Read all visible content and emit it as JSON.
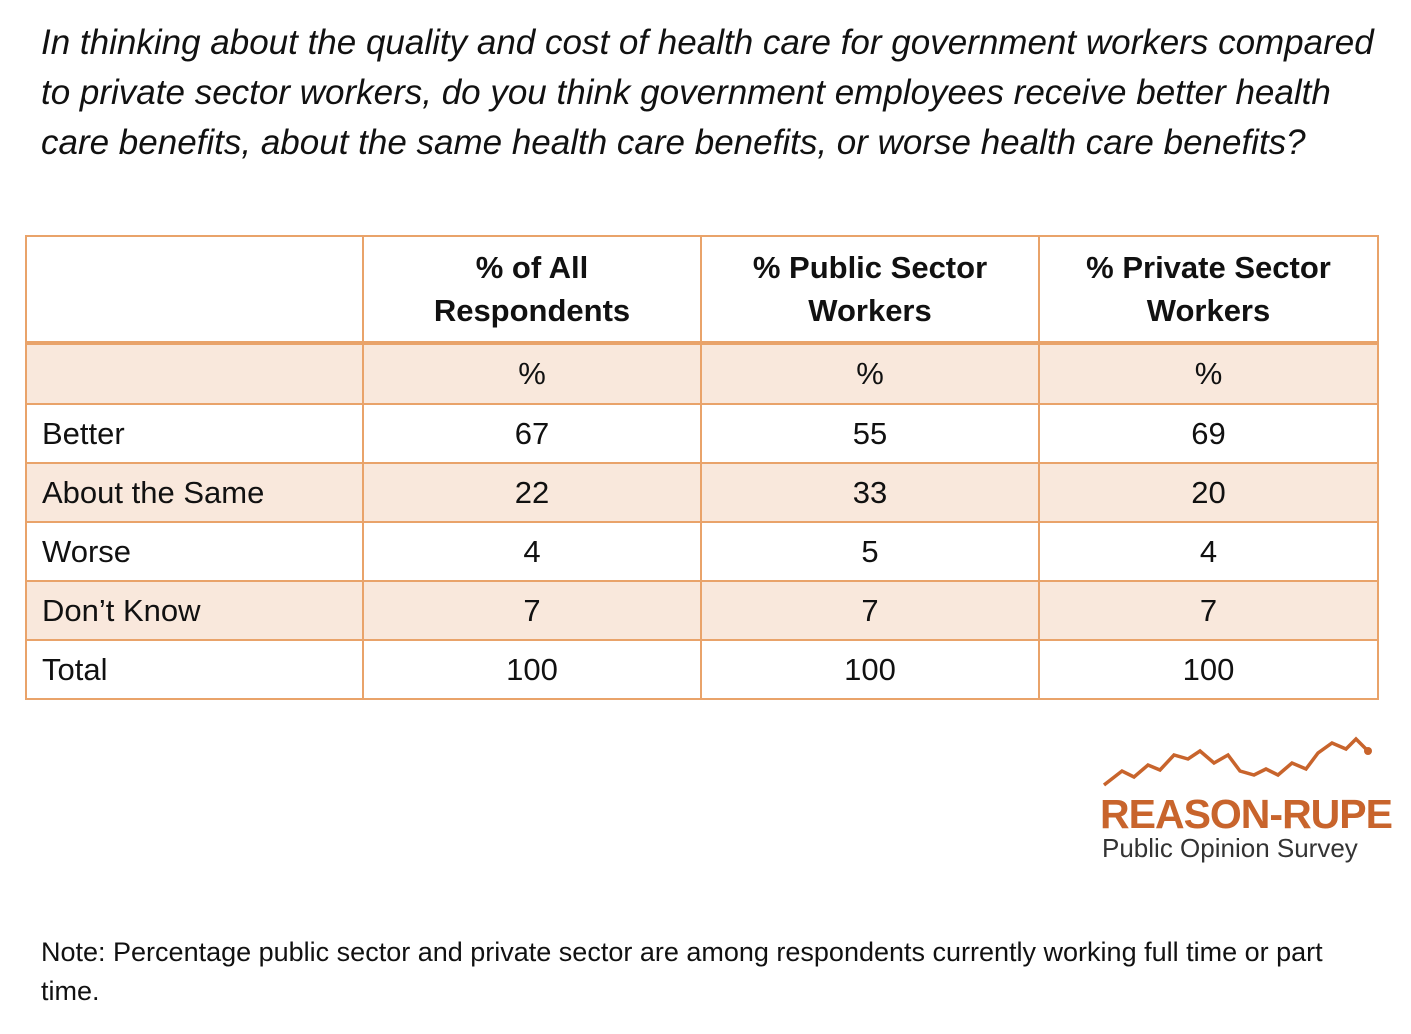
{
  "question": "In thinking about the quality and cost of health care for government workers compared to private sector workers, do you think government employees receive better health care benefits, about the same health care benefits, or worse health care benefits?",
  "table": {
    "headers": [
      {
        "line1": "",
        "line2": ""
      },
      {
        "line1": "% of All",
        "line2": "Respondents"
      },
      {
        "line1": "% Public Sector",
        "line2": "Workers"
      },
      {
        "line1": "% Private Sector",
        "line2": "Workers"
      }
    ],
    "unit_row": [
      "",
      "%",
      "%",
      "%"
    ],
    "rows": [
      {
        "label": "Better",
        "values": [
          "67",
          "55",
          "69"
        ]
      },
      {
        "label": "About the Same",
        "values": [
          "22",
          "33",
          "20"
        ]
      },
      {
        "label": "Worse",
        "values": [
          "4",
          "5",
          "4"
        ]
      },
      {
        "label": "Don’t Know",
        "values": [
          "7",
          "7",
          "7"
        ]
      },
      {
        "label": "Total",
        "values": [
          "100",
          "100",
          "100"
        ]
      }
    ],
    "border_color": "#e9a36a",
    "shade_color": "#f9e8dc"
  },
  "logo": {
    "title": "REASON-RUPE",
    "subtitle": "Public Opinion Survey",
    "color": "#c8642c"
  },
  "note": "Note: Percentage public sector and private sector are among respondents currently working full time or part time."
}
